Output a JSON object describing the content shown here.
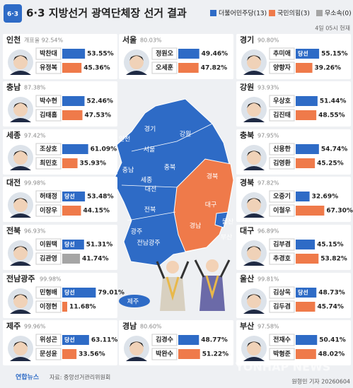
{
  "header": {
    "logo": "6·3",
    "title": "6·3 지방선거 광역단체장 선거 결과",
    "legend": [
      {
        "name": "더불어민주당(13)",
        "color": "#2e6bc6"
      },
      {
        "name": "국민의힘(3)",
        "color": "#ef7a4a"
      },
      {
        "name": "무소속(0)",
        "color": "#a5a5a5"
      }
    ],
    "timestamp": "4일 05시 현재"
  },
  "left_regions": [
    {
      "name": "인천",
      "count": "개표율 92.54%",
      "candidates": [
        {
          "name": "박찬대",
          "value": 53.55,
          "label": "53.55%",
          "color": "#2e6bc6"
        },
        {
          "name": "유정복",
          "value": 45.36,
          "label": "45.36%",
          "color": "#ef7a4a"
        }
      ]
    },
    {
      "name": "충남",
      "count": "87.38%",
      "candidates": [
        {
          "name": "박수현",
          "value": 52.46,
          "label": "52.46%",
          "color": "#2e6bc6"
        },
        {
          "name": "김태흠",
          "value": 47.53,
          "label": "47.53%",
          "color": "#ef7a4a"
        }
      ]
    },
    {
      "name": "세종",
      "count": "97.42%",
      "candidates": [
        {
          "name": "조상호",
          "value": 61.09,
          "label": "61.09%",
          "color": "#2e6bc6"
        },
        {
          "name": "최민호",
          "value": 35.93,
          "label": "35.93%",
          "color": "#ef7a4a"
        }
      ]
    },
    {
      "name": "대전",
      "count": "99.98%",
      "candidates": [
        {
          "name": "허태정",
          "badge": "당선",
          "value": 53.48,
          "label": "53.48%",
          "color": "#2e6bc6"
        },
        {
          "name": "이장우",
          "value": 44.15,
          "label": "44.15%",
          "color": "#ef7a4a"
        }
      ]
    },
    {
      "name": "전북",
      "count": "96.93%",
      "candidates": [
        {
          "name": "이원택",
          "badge": "당선",
          "value": 51.31,
          "label": "51.31%",
          "color": "#2e6bc6"
        },
        {
          "name": "김관영",
          "value": 41.74,
          "label": "41.74%",
          "color": "#a5a5a5"
        }
      ]
    },
    {
      "name": "전남광주",
      "count": "99.98%",
      "candidates": [
        {
          "name": "민형배",
          "badge": "당선",
          "value": 79.01,
          "label": "79.01%",
          "color": "#2e6bc6"
        },
        {
          "name": "이정현",
          "value": 11.68,
          "label": "11.68%",
          "color": "#ef7a4a"
        }
      ]
    },
    {
      "name": "제주",
      "count": "99.96%",
      "candidates": [
        {
          "name": "위성곤",
          "badge": "당선",
          "value": 63.11,
          "label": "63.11%",
          "color": "#2e6bc6"
        },
        {
          "name": "문성윤",
          "value": 33.56,
          "label": "33.56%",
          "color": "#ef7a4a"
        }
      ]
    }
  ],
  "center_regions": [
    {
      "name": "서울",
      "count": "80.03%",
      "candidates": [
        {
          "name": "정원오",
          "value": 49.46,
          "label": "49.46%",
          "color": "#2e6bc6"
        },
        {
          "name": "오세훈",
          "value": 47.82,
          "label": "47.82%",
          "color": "#ef7a4a"
        }
      ]
    },
    {
      "name": "경남",
      "count": "80.60%",
      "candidates": [
        {
          "name": "김경수",
          "value": 48.77,
          "label": "48.77%",
          "color": "#2e6bc6"
        },
        {
          "name": "박완수",
          "value": 51.22,
          "label": "51.22%",
          "color": "#ef7a4a"
        }
      ]
    }
  ],
  "right_regions": [
    {
      "name": "경기",
      "count": "90.80%",
      "candidates": [
        {
          "name": "추미애",
          "badge": "당선",
          "value": 55.15,
          "label": "55.15%",
          "color": "#2e6bc6"
        },
        {
          "name": "양향자",
          "value": 39.26,
          "label": "39.26%",
          "color": "#ef7a4a"
        }
      ]
    },
    {
      "name": "강원",
      "count": "93.93%",
      "candidates": [
        {
          "name": "우상호",
          "value": 51.44,
          "label": "51.44%",
          "color": "#2e6bc6"
        },
        {
          "name": "김진태",
          "value": 48.55,
          "label": "48.55%",
          "color": "#ef7a4a"
        }
      ]
    },
    {
      "name": "충북",
      "count": "97.95%",
      "candidates": [
        {
          "name": "신용한",
          "value": 54.74,
          "label": "54.74%",
          "color": "#2e6bc6"
        },
        {
          "name": "김영환",
          "value": 45.25,
          "label": "45.25%",
          "color": "#ef7a4a"
        }
      ]
    },
    {
      "name": "경북",
      "count": "97.82%",
      "candidates": [
        {
          "name": "오중기",
          "value": 32.69,
          "label": "32.69%",
          "color": "#2e6bc6"
        },
        {
          "name": "이철우",
          "value": 67.3,
          "label": "67.30%",
          "color": "#ef7a4a"
        }
      ]
    },
    {
      "name": "대구",
      "count": "96.89%",
      "candidates": [
        {
          "name": "김부겸",
          "value": 45.15,
          "label": "45.15%",
          "color": "#2e6bc6"
        },
        {
          "name": "추경호",
          "value": 53.82,
          "label": "53.82%",
          "color": "#ef7a4a"
        }
      ]
    },
    {
      "name": "울산",
      "count": "99.81%",
      "candidates": [
        {
          "name": "김상욱",
          "badge": "당선",
          "value": 48.73,
          "label": "48.73%",
          "color": "#2e6bc6"
        },
        {
          "name": "김두겸",
          "value": 45.74,
          "label": "45.74%",
          "color": "#ef7a4a"
        }
      ]
    },
    {
      "name": "부산",
      "count": "97.58%",
      "candidates": [
        {
          "name": "전재수",
          "value": 50.41,
          "label": "50.41%",
          "color": "#2e6bc6"
        },
        {
          "name": "박형준",
          "value": 48.02,
          "label": "48.02%",
          "color": "#ef7a4a"
        }
      ]
    }
  ],
  "map_labels": [
    "경기",
    "강원",
    "인천",
    "서울",
    "충북",
    "충남",
    "세종",
    "대전",
    "경북",
    "대구",
    "전북",
    "울산",
    "경남",
    "부산",
    "광주",
    "전남광주",
    "제주"
  ],
  "footer": {
    "source_logo": "연합뉴스",
    "source": "자료: 중앙선거관리위원회",
    "credit": "원형민 기자 20260604",
    "watermark": "YONHAP NEWS"
  }
}
